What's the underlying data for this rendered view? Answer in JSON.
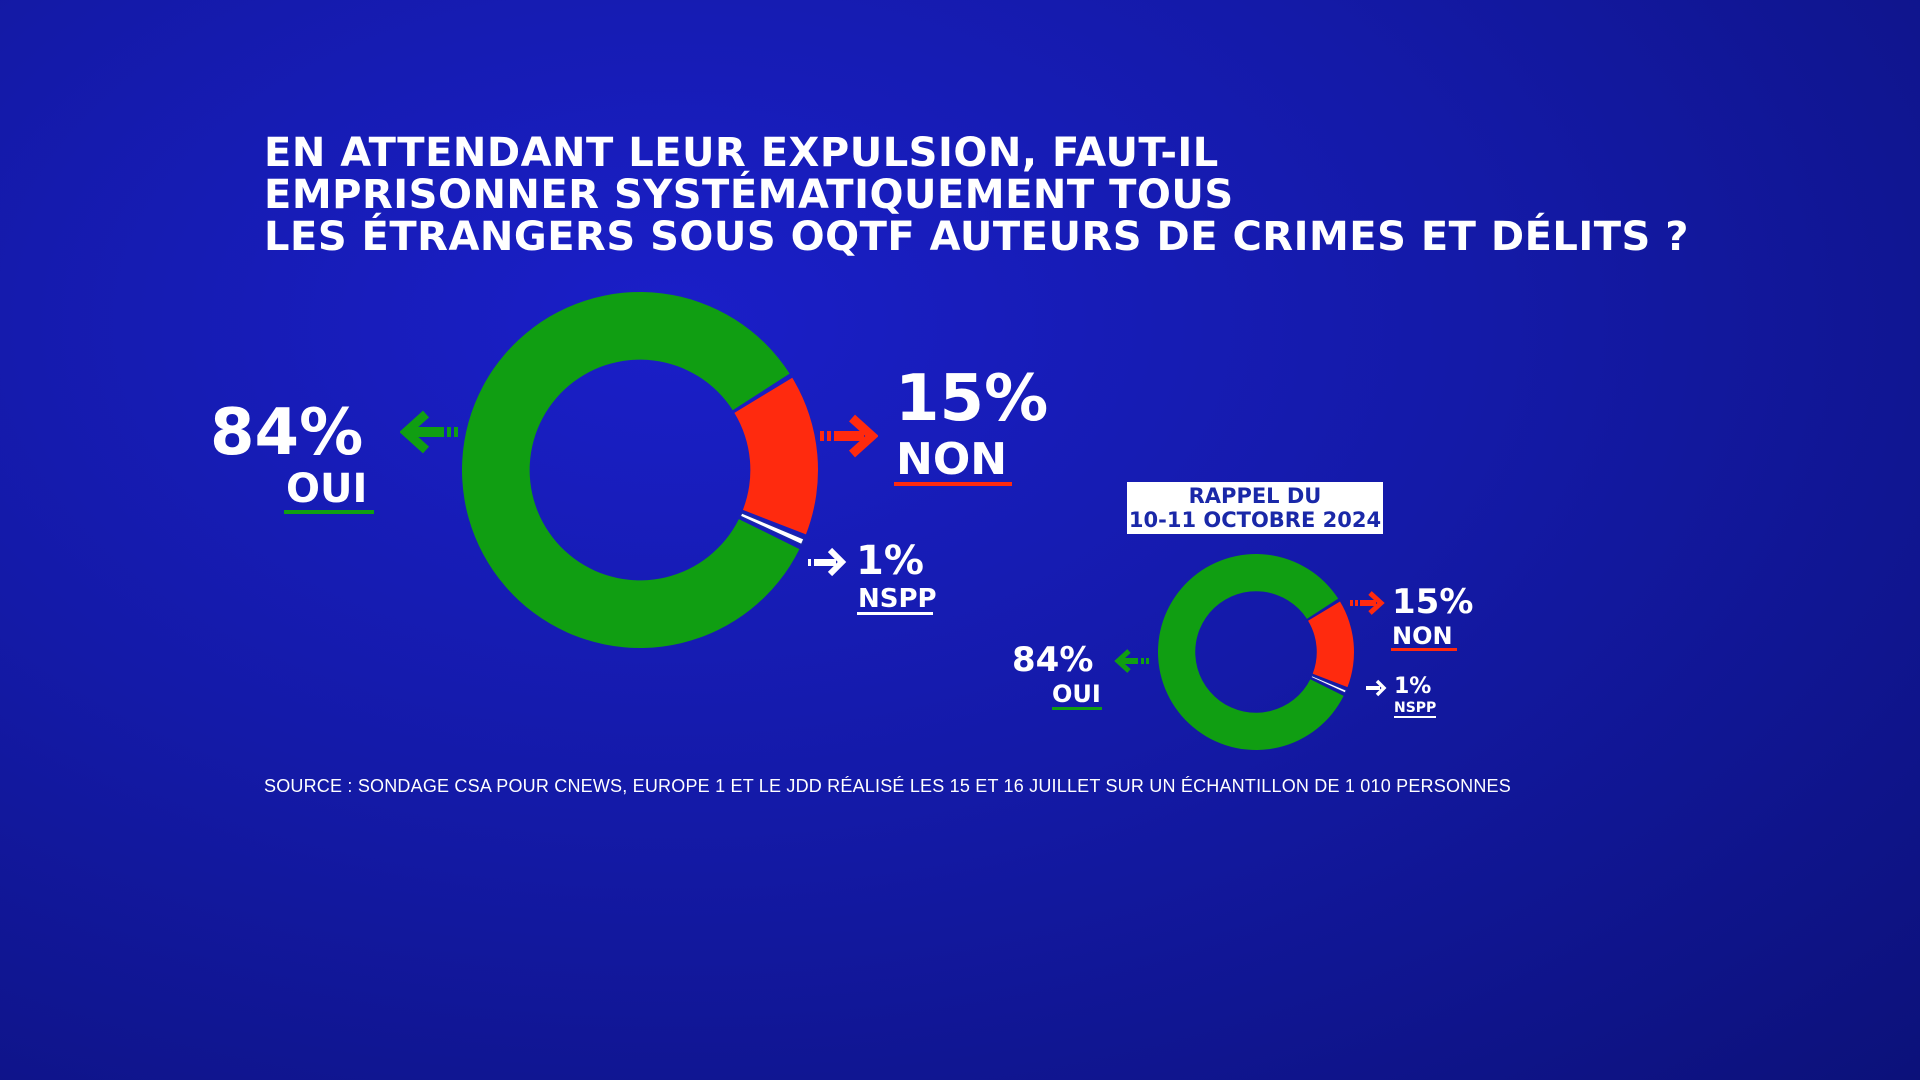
{
  "title": {
    "line1": "EN ATTENDANT LEUR EXPULSION, FAUT-IL",
    "line2": "EMPRISONNER SYSTÉMATIQUEMENT TOUS",
    "line3": "LES ÉTRANGERS SOUS OQTF AUTEURS DE CRIMES ET DÉLITS ?"
  },
  "colors": {
    "oui": "#109e12",
    "non": "#ff2a0e",
    "nspp": "#ffffff",
    "background": "#141aa8",
    "badge_text": "#1a28a8"
  },
  "chart_data": [
    {
      "type": "pie",
      "variant": "donut",
      "slices": [
        {
          "label": "OUI",
          "value": 84,
          "display": "84%"
        },
        {
          "label": "NON",
          "value": 15,
          "display": "15%"
        },
        {
          "label": "NSPP",
          "value": 1,
          "display": "1%"
        }
      ]
    },
    {
      "type": "pie",
      "variant": "donut",
      "caption_line1": "RAPPEL DU",
      "caption_line2": "10-11 OCTOBRE 2024",
      "slices": [
        {
          "label": "OUI",
          "value": 84,
          "display": "84%"
        },
        {
          "label": "NON",
          "value": 15,
          "display": "15%"
        },
        {
          "label": "NSPP",
          "value": 1,
          "display": "1%"
        }
      ]
    }
  ],
  "source": "SOURCE : SONDAGE CSA POUR CNEWS, EUROPE 1 ET LE JDD RÉALISÉ LES 15 ET 16 JUILLET SUR UN ÉCHANTILLON DE 1 010 PERSONNES"
}
